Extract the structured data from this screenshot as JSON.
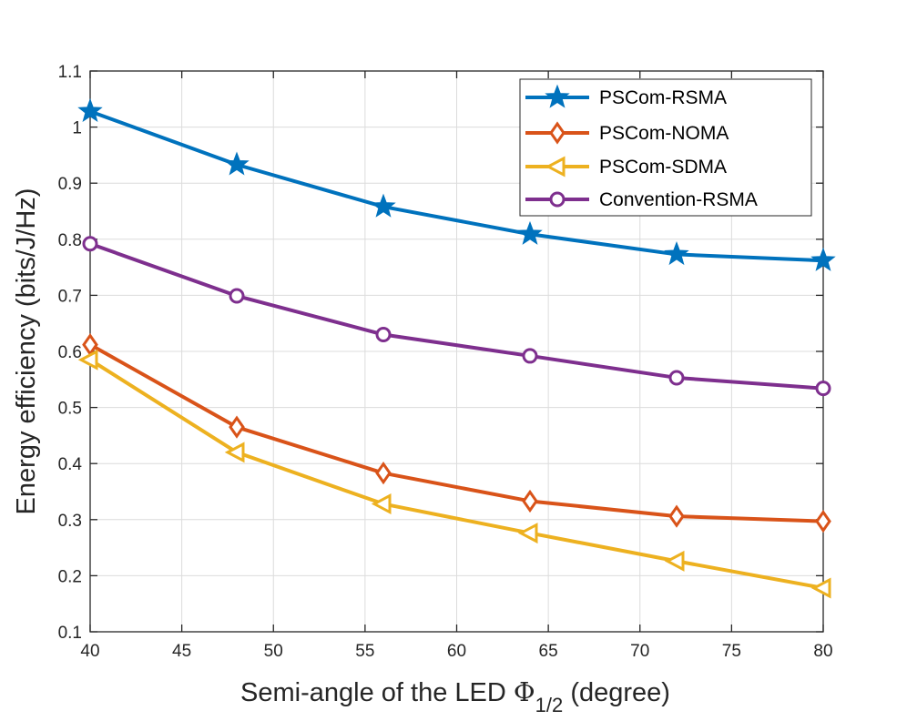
{
  "chart_data": {
    "type": "line",
    "xlabel": "Semi-angle of the LED",
    "xlabel_symbol": "Φ",
    "xlabel_subscript": "1/2",
    "xlabel_suffix": "(degree)",
    "ylabel": "Energy efficiency (bits/J/Hz)",
    "xlim": [
      40,
      80
    ],
    "ylim": [
      0.1,
      1.1
    ],
    "xticks": [
      40,
      45,
      50,
      55,
      60,
      65,
      70,
      75,
      80
    ],
    "xtick_labels": [
      "40",
      "45",
      "50",
      "55",
      "60",
      "65",
      "70",
      "75",
      "80"
    ],
    "yticks": [
      0.1,
      0.2,
      0.3,
      0.4,
      0.5,
      0.6,
      0.7,
      0.8,
      0.9,
      1.0,
      1.1
    ],
    "ytick_labels": [
      "0.1",
      "0.2",
      "0.3",
      "0.4",
      "0.5",
      "0.6",
      "0.7",
      "0.8",
      "0.9",
      "1",
      "1.1"
    ],
    "grid": true,
    "legend_position": "top-right",
    "x": [
      40,
      48,
      56,
      64,
      72,
      80
    ],
    "series": [
      {
        "name": "PSCom-RSMA",
        "color": "#0072BD",
        "marker": "star",
        "values": [
          1.028,
          0.933,
          0.858,
          0.809,
          0.773,
          0.762
        ]
      },
      {
        "name": "PSCom-NOMA",
        "color": "#D95319",
        "marker": "diamond",
        "values": [
          0.612,
          0.465,
          0.383,
          0.333,
          0.306,
          0.297
        ]
      },
      {
        "name": "PSCom-SDMA",
        "color": "#EDB120",
        "marker": "triangle-left",
        "values": [
          0.585,
          0.42,
          0.328,
          0.276,
          0.226,
          0.178
        ]
      },
      {
        "name": "Convention-RSMA",
        "color": "#7E2F8E",
        "marker": "circle",
        "values": [
          0.792,
          0.699,
          0.63,
          0.592,
          0.553,
          0.534
        ]
      }
    ]
  }
}
